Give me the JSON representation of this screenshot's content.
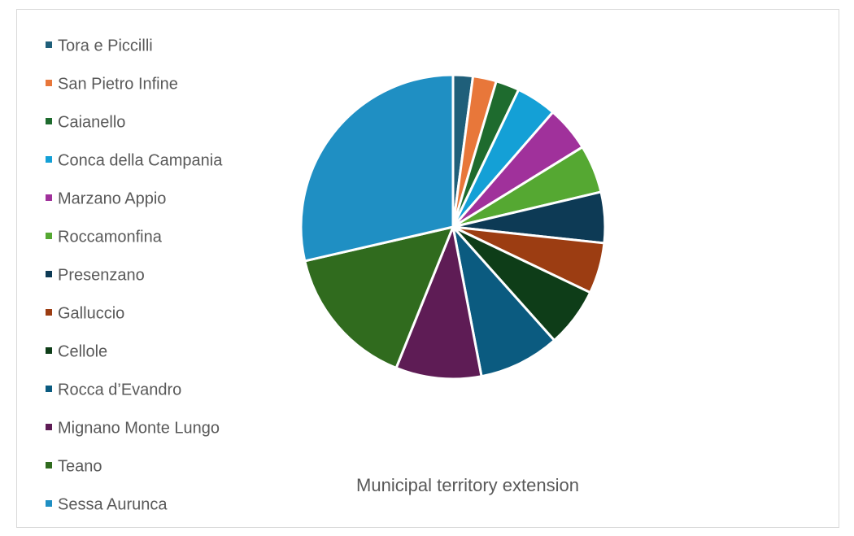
{
  "chart_data": {
    "type": "pie",
    "title": "Municipal territory extension",
    "legend_position": "left",
    "start_angle_deg": 0,
    "direction": "clockwise",
    "categories": [
      "Tora e Piccilli",
      "San Pietro Infine",
      "Caianello",
      "Conca della Campania",
      "Marzano Appio",
      "Roccamonfina",
      "Presenzano",
      "Galluccio",
      "Cellole",
      "Rocca d’Evandro",
      "Mignano Monte Lungo",
      "Teano",
      "Sessa Aurunca"
    ],
    "values": [
      2.1,
      2.5,
      2.5,
      4.3,
      4.8,
      5.1,
      5.4,
      5.4,
      6.3,
      8.6,
      9.1,
      15.3,
      28.6
    ],
    "colors": [
      "#1f5f7a",
      "#e8773a",
      "#1e6b2e",
      "#14a0d6",
      "#a0319b",
      "#55a832",
      "#0d3a55",
      "#9c3d12",
      "#0e3d18",
      "#0b5b80",
      "#5e1c55",
      "#306b1e",
      "#1f8fc3"
    ]
  }
}
